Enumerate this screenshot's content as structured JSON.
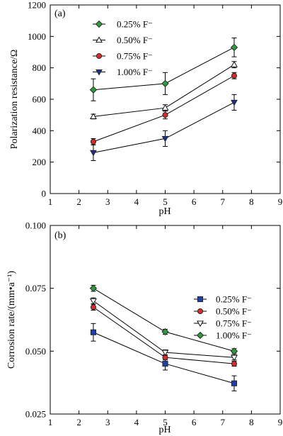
{
  "chart_data": [
    {
      "type": "line",
      "panel_label": "(a)",
      "xlabel": "pH",
      "ylabel": "Polarization resistance/Ω",
      "xlim": [
        1,
        9
      ],
      "ylim": [
        0,
        1200
      ],
      "xticks": [
        "1",
        "2",
        "3",
        "4",
        "5",
        "6",
        "7",
        "8",
        "9"
      ],
      "yticks": [
        "0",
        "200",
        "400",
        "600",
        "800",
        "1000",
        "1200"
      ],
      "x": [
        2.5,
        5.0,
        7.4
      ],
      "legend_position": "top-left",
      "series": [
        {
          "name": "0.25% F⁻",
          "marker": "diamond-filled",
          "color": "#2e9b3c",
          "values": [
            660,
            700,
            930
          ],
          "errors": [
            70,
            70,
            60
          ]
        },
        {
          "name": "0.50% F⁻",
          "marker": "triangle-up-open",
          "color": "#ffffff",
          "values": [
            490,
            545,
            820
          ],
          "errors": [
            15,
            20,
            20
          ]
        },
        {
          "name": "0.75% F⁻",
          "marker": "circle-filled",
          "color": "#d42a2a",
          "values": [
            330,
            500,
            750
          ],
          "errors": [
            20,
            25,
            20
          ]
        },
        {
          "name": "1.00% F⁻",
          "marker": "triangle-down-filled",
          "color": "#1f2f8f",
          "values": [
            260,
            350,
            580
          ],
          "errors": [
            50,
            50,
            50
          ]
        }
      ]
    },
    {
      "type": "line",
      "panel_label": "(b)",
      "xlabel": "pH",
      "ylabel": "Corrosion rate/(mm•a⁻¹)",
      "xlim": [
        1,
        9
      ],
      "ylim": [
        0.025,
        0.1
      ],
      "xticks": [
        "1",
        "2",
        "3",
        "4",
        "5",
        "6",
        "7",
        "8",
        "9"
      ],
      "yticks": [
        "0.025",
        "0.050",
        "0.075",
        "0.100"
      ],
      "x": [
        2.5,
        5.0,
        7.4
      ],
      "legend_position": "top-right",
      "series": [
        {
          "name": "0.25% F⁻",
          "marker": "square-filled",
          "color": "#1f3fa8",
          "values": [
            0.0575,
            0.045,
            0.0372
          ],
          "errors": [
            0.0035,
            0.0025,
            0.003
          ]
        },
        {
          "name": "0.50% F⁻",
          "marker": "circle-filled",
          "color": "#d42a2a",
          "values": [
            0.0675,
            0.0475,
            0.045
          ],
          "errors": [
            0.0012,
            0.001,
            0.001
          ]
        },
        {
          "name": "0.75% F⁻",
          "marker": "triangle-down-open",
          "color": "#ffffff",
          "values": [
            0.07,
            0.0495,
            0.0475
          ],
          "errors": [
            0.0012,
            0.001,
            0.001
          ]
        },
        {
          "name": "1.00% F⁻",
          "marker": "diamond-filled",
          "color": "#2e9b3c",
          "values": [
            0.075,
            0.0577,
            0.05
          ],
          "errors": [
            0.0012,
            0.001,
            0.001
          ]
        }
      ]
    }
  ]
}
